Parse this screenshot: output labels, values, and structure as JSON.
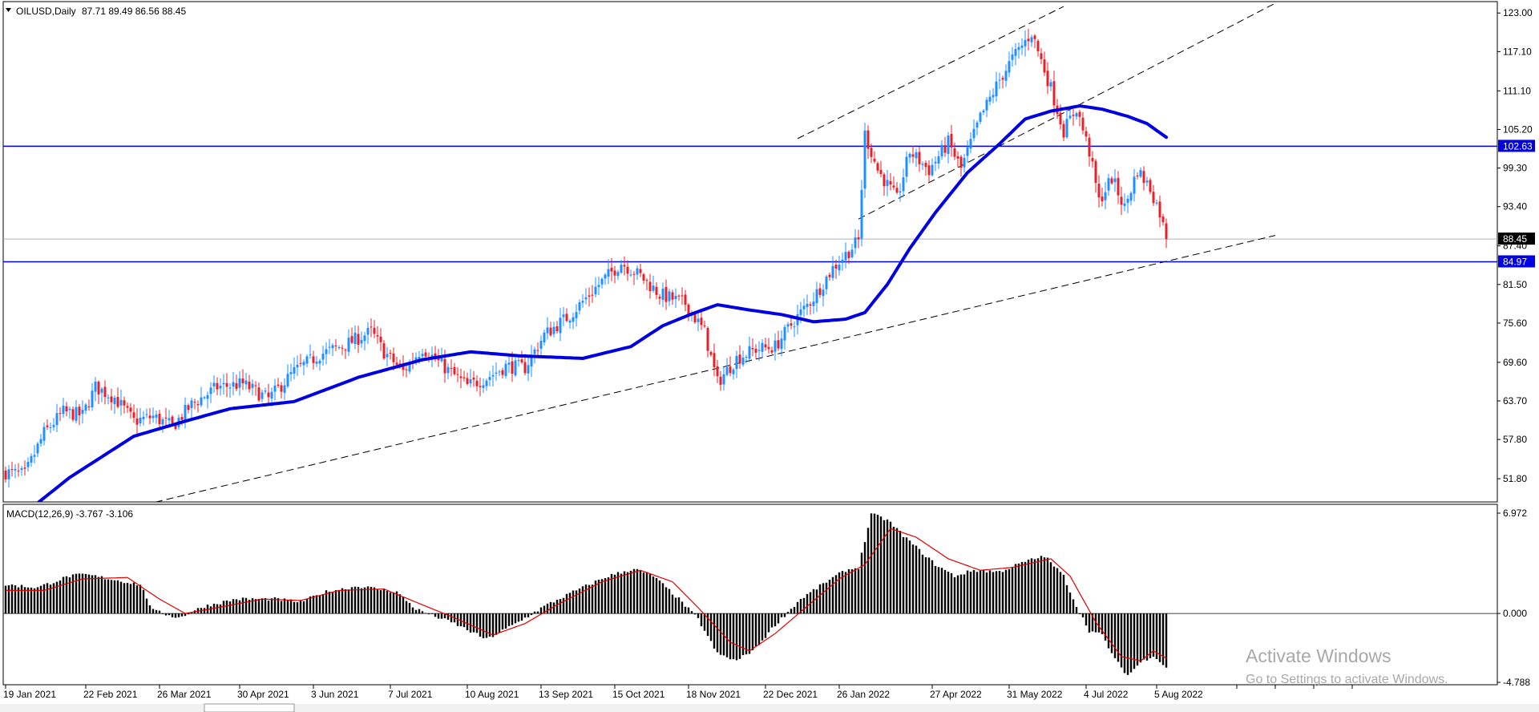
{
  "header": {
    "symbol": "OILUSD,Daily",
    "ohlc": "87.71 89.49 86.56 88.45"
  },
  "price_labels": {
    "current": "88.45",
    "level_high": "102.63",
    "level_low": "84.97"
  },
  "macd_header": "MACD(12,26,9) -3.767 -3.106",
  "colors": {
    "background": "#ffffff",
    "bull": "#1e90ff",
    "bear": "#e8202a",
    "ma": "#0000e0",
    "level": "#0000e0",
    "signal": "#e00000",
    "histogram": "#000000",
    "trendline": "#000000"
  },
  "watermark": {
    "line1": "Activate Windows",
    "line2": "Go to Settings to activate Windows."
  },
  "chart_data": [
    {
      "type": "candlestick",
      "title": "OILUSD,Daily",
      "ylim": [
        48.5,
        124.5
      ],
      "y_ticks": [
        "123.00",
        "117.10",
        "111.10",
        "105.20",
        "99.30",
        "93.40",
        "87.40",
        "81.50",
        "75.60",
        "69.60",
        "63.70",
        "57.80",
        "51.80"
      ],
      "x_ticks": [
        "19 Jan 2021",
        "22 Feb 2021",
        "26 Mar 2021",
        "30 Apr 2021",
        "3 Jun 2021",
        "7 Jul 2021",
        "10 Aug 2021",
        "13 Sep 2021",
        "15 Oct 2021",
        "18 Nov 2021",
        "22 Dec 2021",
        "26 Jan 2022",
        "27 Apr 2022",
        "31 May 2022",
        "4 Jul 2022",
        "5 Aug 2022"
      ],
      "x_tick_index": [
        0,
        25,
        48,
        73,
        96,
        120,
        144,
        167,
        190,
        213,
        237,
        260,
        289,
        313,
        337,
        359
      ],
      "anchors": [
        {
          "i": 0,
          "v": 52.8
        },
        {
          "i": 6,
          "v": 52.4
        },
        {
          "i": 12,
          "v": 58.8
        },
        {
          "i": 18,
          "v": 62.0
        },
        {
          "i": 24,
          "v": 61.5
        },
        {
          "i": 28,
          "v": 65.8
        },
        {
          "i": 34,
          "v": 64.2
        },
        {
          "i": 40,
          "v": 60.6
        },
        {
          "i": 46,
          "v": 61.3
        },
        {
          "i": 52,
          "v": 59.8
        },
        {
          "i": 58,
          "v": 63.1
        },
        {
          "i": 66,
          "v": 65.8
        },
        {
          "i": 74,
          "v": 66.3
        },
        {
          "i": 82,
          "v": 64.0
        },
        {
          "i": 90,
          "v": 68.2
        },
        {
          "i": 98,
          "v": 70.8
        },
        {
          "i": 106,
          "v": 72.3
        },
        {
          "i": 114,
          "v": 74.3
        },
        {
          "i": 118,
          "v": 71.2
        },
        {
          "i": 124,
          "v": 68.2
        },
        {
          "i": 130,
          "v": 71.8
        },
        {
          "i": 136,
          "v": 69.2
        },
        {
          "i": 144,
          "v": 66.0
        },
        {
          "i": 150,
          "v": 67.2
        },
        {
          "i": 156,
          "v": 69.0
        },
        {
          "i": 162,
          "v": 68.8
        },
        {
          "i": 168,
          "v": 73.8
        },
        {
          "i": 176,
          "v": 76.8
        },
        {
          "i": 184,
          "v": 81.0
        },
        {
          "i": 192,
          "v": 84.8
        },
        {
          "i": 198,
          "v": 82.8
        },
        {
          "i": 204,
          "v": 80.0
        },
        {
          "i": 212,
          "v": 78.6
        },
        {
          "i": 218,
          "v": 74.2
        },
        {
          "i": 222,
          "v": 66.5
        },
        {
          "i": 228,
          "v": 70.2
        },
        {
          "i": 234,
          "v": 71.6
        },
        {
          "i": 240,
          "v": 72.0
        },
        {
          "i": 246,
          "v": 76.0
        },
        {
          "i": 252,
          "v": 79.5
        },
        {
          "i": 258,
          "v": 84.0
        },
        {
          "i": 266,
          "v": 88.2
        },
        {
          "i": 268,
          "v": 104.5
        },
        {
          "i": 272,
          "v": 99.0
        },
        {
          "i": 278,
          "v": 94.5
        },
        {
          "i": 282,
          "v": 101.8
        },
        {
          "i": 288,
          "v": 99.0
        },
        {
          "i": 294,
          "v": 103.2
        },
        {
          "i": 298,
          "v": 99.2
        },
        {
          "i": 304,
          "v": 107.0
        },
        {
          "i": 310,
          "v": 112.8
        },
        {
          "i": 314,
          "v": 116.0
        },
        {
          "i": 320,
          "v": 120.0
        },
        {
          "i": 326,
          "v": 111.5
        },
        {
          "i": 330,
          "v": 105.0
        },
        {
          "i": 334,
          "v": 108.5
        },
        {
          "i": 338,
          "v": 101.8
        },
        {
          "i": 341,
          "v": 94.2
        },
        {
          "i": 345,
          "v": 97.8
        },
        {
          "i": 349,
          "v": 93.2
        },
        {
          "i": 353,
          "v": 99.0
        },
        {
          "i": 357,
          "v": 96.2
        },
        {
          "i": 360,
          "v": 92.5
        },
        {
          "i": 362,
          "v": 88.45
        }
      ],
      "ma": [
        {
          "i": 0,
          "v": 44.2
        },
        {
          "i": 20,
          "v": 52.0
        },
        {
          "i": 40,
          "v": 58.3
        },
        {
          "i": 56,
          "v": 60.6
        },
        {
          "i": 70,
          "v": 62.5
        },
        {
          "i": 90,
          "v": 63.6
        },
        {
          "i": 110,
          "v": 67.3
        },
        {
          "i": 130,
          "v": 70.0
        },
        {
          "i": 145,
          "v": 71.2
        },
        {
          "i": 160,
          "v": 70.6
        },
        {
          "i": 180,
          "v": 70.2
        },
        {
          "i": 195,
          "v": 72.0
        },
        {
          "i": 205,
          "v": 75.2
        },
        {
          "i": 214,
          "v": 77.0
        },
        {
          "i": 222,
          "v": 78.4
        },
        {
          "i": 232,
          "v": 77.6
        },
        {
          "i": 242,
          "v": 76.9
        },
        {
          "i": 252,
          "v": 75.8
        },
        {
          "i": 262,
          "v": 76.2
        },
        {
          "i": 268,
          "v": 77.2
        },
        {
          "i": 275,
          "v": 81.5
        },
        {
          "i": 282,
          "v": 87.0
        },
        {
          "i": 290,
          "v": 92.5
        },
        {
          "i": 300,
          "v": 98.6
        },
        {
          "i": 310,
          "v": 103.0
        },
        {
          "i": 318,
          "v": 106.8
        },
        {
          "i": 326,
          "v": 108.0
        },
        {
          "i": 335,
          "v": 108.8
        },
        {
          "i": 342,
          "v": 108.3
        },
        {
          "i": 350,
          "v": 107.2
        },
        {
          "i": 356,
          "v": 106.1
        },
        {
          "i": 362,
          "v": 104.0
        }
      ],
      "levels": [
        102.63,
        84.97
      ],
      "current_price": 88.45,
      "trendlines": [
        {
          "from": [
            -52,
            36.7
          ],
          "to": [
            396,
            89.0
          ]
        },
        {
          "from": [
            247,
            103.8
          ],
          "to": [
            330,
            124.0
          ]
        },
        {
          "from": [
            266,
            91.5
          ],
          "to": [
            396,
            124.5
          ]
        }
      ]
    },
    {
      "type": "bar",
      "title": "MACD(12,26,9) -3.767 -3.106",
      "macd": -3.767,
      "signal_value": -3.106,
      "ylim": [
        -4.788,
        6.972
      ],
      "y_ticks": [
        "6.972",
        "0.000",
        "-4.788"
      ],
      "histogram_anchors": [
        {
          "i": 0,
          "v": 2.0
        },
        {
          "i": 10,
          "v": 1.8
        },
        {
          "i": 20,
          "v": 2.6
        },
        {
          "i": 25,
          "v": 2.7
        },
        {
          "i": 35,
          "v": 2.3
        },
        {
          "i": 42,
          "v": 2.0
        },
        {
          "i": 46,
          "v": 0.2
        },
        {
          "i": 54,
          "v": -0.3
        },
        {
          "i": 62,
          "v": 0.5
        },
        {
          "i": 72,
          "v": 1.0
        },
        {
          "i": 84,
          "v": 1.0
        },
        {
          "i": 92,
          "v": 0.8
        },
        {
          "i": 100,
          "v": 1.5
        },
        {
          "i": 110,
          "v": 1.9
        },
        {
          "i": 122,
          "v": 1.5
        },
        {
          "i": 128,
          "v": 0.3
        },
        {
          "i": 134,
          "v": -0.2
        },
        {
          "i": 140,
          "v": -0.7
        },
        {
          "i": 150,
          "v": -1.8
        },
        {
          "i": 160,
          "v": -0.6
        },
        {
          "i": 168,
          "v": 0.5
        },
        {
          "i": 178,
          "v": 1.6
        },
        {
          "i": 188,
          "v": 2.6
        },
        {
          "i": 196,
          "v": 3.1
        },
        {
          "i": 202,
          "v": 2.6
        },
        {
          "i": 210,
          "v": 1.0
        },
        {
          "i": 216,
          "v": -0.4
        },
        {
          "i": 222,
          "v": -2.8
        },
        {
          "i": 228,
          "v": -3.3
        },
        {
          "i": 234,
          "v": -2.4
        },
        {
          "i": 240,
          "v": -0.8
        },
        {
          "i": 248,
          "v": 1.0
        },
        {
          "i": 256,
          "v": 2.2
        },
        {
          "i": 262,
          "v": 3.0
        },
        {
          "i": 266,
          "v": 3.2
        },
        {
          "i": 270,
          "v": 6.9
        },
        {
          "i": 275,
          "v": 6.5
        },
        {
          "i": 282,
          "v": 5.0
        },
        {
          "i": 290,
          "v": 3.4
        },
        {
          "i": 296,
          "v": 2.6
        },
        {
          "i": 302,
          "v": 3.0
        },
        {
          "i": 310,
          "v": 2.9
        },
        {
          "i": 318,
          "v": 3.6
        },
        {
          "i": 324,
          "v": 4.0
        },
        {
          "i": 330,
          "v": 2.6
        },
        {
          "i": 334,
          "v": 0.5
        },
        {
          "i": 338,
          "v": -1.2
        },
        {
          "i": 342,
          "v": -1.5
        },
        {
          "i": 346,
          "v": -3.2
        },
        {
          "i": 350,
          "v": -4.3
        },
        {
          "i": 354,
          "v": -3.4
        },
        {
          "i": 358,
          "v": -2.9
        },
        {
          "i": 362,
          "v": -3.8
        }
      ],
      "signal_anchors": [
        {
          "i": 0,
          "v": 1.6
        },
        {
          "i": 12,
          "v": 1.6
        },
        {
          "i": 24,
          "v": 2.4
        },
        {
          "i": 38,
          "v": 2.5
        },
        {
          "i": 48,
          "v": 1.0
        },
        {
          "i": 56,
          "v": 0.0
        },
        {
          "i": 66,
          "v": 0.4
        },
        {
          "i": 80,
          "v": 1.0
        },
        {
          "i": 92,
          "v": 0.9
        },
        {
          "i": 104,
          "v": 1.6
        },
        {
          "i": 118,
          "v": 1.7
        },
        {
          "i": 130,
          "v": 0.6
        },
        {
          "i": 140,
          "v": -0.3
        },
        {
          "i": 152,
          "v": -1.5
        },
        {
          "i": 162,
          "v": -0.7
        },
        {
          "i": 172,
          "v": 0.6
        },
        {
          "i": 186,
          "v": 2.2
        },
        {
          "i": 198,
          "v": 3.0
        },
        {
          "i": 208,
          "v": 2.2
        },
        {
          "i": 216,
          "v": 0.4
        },
        {
          "i": 226,
          "v": -2.0
        },
        {
          "i": 232,
          "v": -2.6
        },
        {
          "i": 240,
          "v": -1.4
        },
        {
          "i": 250,
          "v": 0.5
        },
        {
          "i": 260,
          "v": 2.4
        },
        {
          "i": 268,
          "v": 3.4
        },
        {
          "i": 276,
          "v": 5.9
        },
        {
          "i": 284,
          "v": 5.3
        },
        {
          "i": 294,
          "v": 3.8
        },
        {
          "i": 304,
          "v": 3.0
        },
        {
          "i": 314,
          "v": 3.2
        },
        {
          "i": 326,
          "v": 3.8
        },
        {
          "i": 332,
          "v": 2.6
        },
        {
          "i": 340,
          "v": -0.6
        },
        {
          "i": 348,
          "v": -3.0
        },
        {
          "i": 354,
          "v": -3.3
        },
        {
          "i": 358,
          "v": -2.6
        },
        {
          "i": 362,
          "v": -3.106
        }
      ]
    }
  ]
}
